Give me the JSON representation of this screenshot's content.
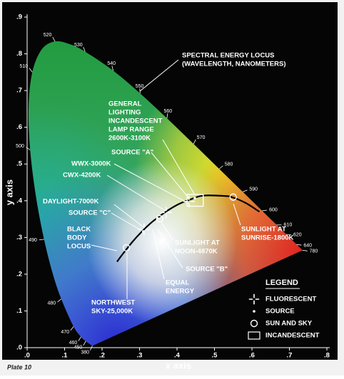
{
  "chart_data": {
    "type": "chromaticity",
    "xlabel": "x axis",
    "ylabel": "y axis",
    "footer": "Plate 10",
    "xlim": [
      0,
      0.8
    ],
    "ylim": [
      0,
      0.9
    ],
    "xticks": [
      {
        "value": 0,
        "label": ".0"
      },
      {
        "value": 0.1,
        "label": ".1"
      },
      {
        "value": 0.2,
        "label": ".2"
      },
      {
        "value": 0.3,
        "label": ".3"
      },
      {
        "value": 0.4,
        "label": ".4"
      },
      {
        "value": 0.5,
        "label": ".5"
      },
      {
        "value": 0.6,
        "label": ".6"
      },
      {
        "value": 0.7,
        "label": ".7"
      },
      {
        "value": 0.8,
        "label": ".8"
      }
    ],
    "yticks": [
      {
        "value": 0,
        "label": ".0"
      },
      {
        "value": 0.1,
        "label": ".1"
      },
      {
        "value": 0.2,
        "label": ".2"
      },
      {
        "value": 0.3,
        "label": ".3"
      },
      {
        "value": 0.4,
        "label": ".4"
      },
      {
        "value": 0.5,
        "label": ".5"
      },
      {
        "value": 0.6,
        "label": ".6"
      },
      {
        "value": 0.7,
        "label": ".7"
      },
      {
        "value": 0.8,
        "label": ".8"
      },
      {
        "value": 0.9,
        "label": ".9"
      }
    ],
    "locus": {
      "labels": [
        380,
        450,
        460,
        470,
        480,
        null,
        490,
        null,
        500,
        null,
        510,
        null,
        520,
        null,
        530,
        540,
        550,
        560,
        570,
        580,
        590,
        600,
        610,
        620,
        640,
        780
      ],
      "x": [
        0.1741,
        0.1566,
        0.144,
        0.1241,
        0.0913,
        0.0687,
        0.0454,
        0.0235,
        0.0082,
        0.0039,
        0.0139,
        0.0389,
        0.0743,
        0.1142,
        0.1547,
        0.2296,
        0.3016,
        0.3731,
        0.4441,
        0.5125,
        0.5752,
        0.627,
        0.6658,
        0.6915,
        0.719,
        0.7347
      ],
      "y": [
        0.005,
        0.0177,
        0.0297,
        0.0578,
        0.1327,
        0.2007,
        0.295,
        0.4127,
        0.5384,
        0.6548,
        0.7502,
        0.812,
        0.8338,
        0.8262,
        0.8059,
        0.7543,
        0.6923,
        0.6245,
        0.5547,
        0.4866,
        0.4242,
        0.3725,
        0.334,
        0.3083,
        0.2809,
        0.2653
      ]
    },
    "blackbody": {
      "x": [
        0.24,
        0.253,
        0.281,
        0.306,
        0.332,
        0.35,
        0.373,
        0.405,
        0.437,
        0.47,
        0.527,
        0.549,
        0.585,
        0.62
      ],
      "y": [
        0.234,
        0.252,
        0.288,
        0.316,
        0.341,
        0.355,
        0.372,
        0.391,
        0.404,
        0.414,
        0.413,
        0.409,
        0.393,
        0.37
      ]
    },
    "legend_title": "LEGEND",
    "series": [
      {
        "name": "FLUORESCENT",
        "marker": "cross",
        "color": "#ffffff",
        "x": [
          0.312,
          0.371,
          0.432
        ],
        "values": [
          0.322,
          0.368,
          0.398
        ]
      },
      {
        "name": "SOURCE",
        "marker": "dot",
        "color": "#ffffff",
        "x": [
          0.4476,
          0.3484,
          0.3101
        ],
        "values": [
          0.4074,
          0.3516,
          0.3162
        ]
      },
      {
        "name": "SUN AND SKY",
        "marker": "circle",
        "color": "#ffffff",
        "x": [
          0.55,
          0.354,
          0.265
        ],
        "values": [
          0.41,
          0.351,
          0.272
        ]
      },
      {
        "name": "INCANDESCENT",
        "marker": "rect",
        "color": "#ffffff",
        "x": [
          0.427,
          0.47
        ],
        "values": [
          0.385,
          0.417
        ]
      }
    ],
    "annotations": [
      [
        "SPECTRAL ENERGY LOCUS",
        "(WAVELENGTH, NANOMETERS)"
      ],
      [
        "GENERAL",
        "LIGHTING",
        "INCANDESCENT",
        "LAMP RANGE",
        "2600K-3100K"
      ],
      [
        "SOURCE \"A\""
      ],
      [
        "WWX-3000K"
      ],
      [
        "CWX-4200K"
      ],
      [
        "DAYLIGHT-7000K"
      ],
      [
        "SOURCE \"C\""
      ],
      [
        "BLACK",
        "BODY",
        "LOCUS"
      ],
      [
        "SUNLIGHT AT",
        "NOON-4870K"
      ],
      [
        "SOURCE \"B\""
      ],
      [
        "EQUAL",
        "ENERGY"
      ],
      [
        "NORTHWEST",
        "SKY-25,000K"
      ],
      [
        "SUNLIGHT AT",
        "SUNRISE-1800K"
      ]
    ]
  }
}
